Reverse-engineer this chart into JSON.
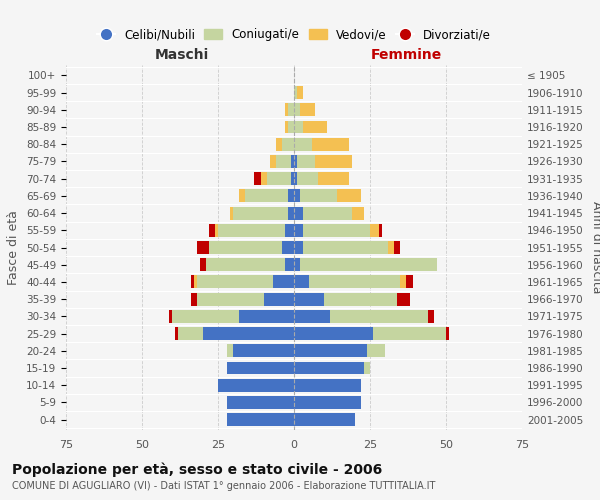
{
  "age_groups": [
    "0-4",
    "5-9",
    "10-14",
    "15-19",
    "20-24",
    "25-29",
    "30-34",
    "35-39",
    "40-44",
    "45-49",
    "50-54",
    "55-59",
    "60-64",
    "65-69",
    "70-74",
    "75-79",
    "80-84",
    "85-89",
    "90-94",
    "95-99",
    "100+"
  ],
  "birth_years": [
    "2001-2005",
    "1996-2000",
    "1991-1995",
    "1986-1990",
    "1981-1985",
    "1976-1980",
    "1971-1975",
    "1966-1970",
    "1961-1965",
    "1956-1960",
    "1951-1955",
    "1946-1950",
    "1941-1945",
    "1936-1940",
    "1931-1935",
    "1926-1930",
    "1921-1925",
    "1916-1920",
    "1911-1915",
    "1906-1910",
    "≤ 1905"
  ],
  "maschi": {
    "celibe": [
      22,
      22,
      25,
      22,
      20,
      30,
      18,
      10,
      7,
      3,
      4,
      3,
      2,
      2,
      1,
      1,
      0,
      0,
      0,
      0,
      0
    ],
    "coniugato": [
      0,
      0,
      0,
      0,
      2,
      8,
      22,
      22,
      25,
      26,
      24,
      22,
      18,
      14,
      8,
      5,
      4,
      2,
      2,
      0,
      0
    ],
    "vedovo": [
      0,
      0,
      0,
      0,
      0,
      0,
      0,
      0,
      1,
      0,
      0,
      1,
      1,
      2,
      2,
      2,
      2,
      1,
      1,
      0,
      0
    ],
    "divorziato": [
      0,
      0,
      0,
      0,
      0,
      1,
      1,
      2,
      1,
      2,
      4,
      2,
      0,
      0,
      2,
      0,
      0,
      0,
      0,
      0,
      0
    ]
  },
  "femmine": {
    "nubile": [
      20,
      22,
      22,
      23,
      24,
      26,
      12,
      10,
      5,
      2,
      3,
      3,
      3,
      2,
      1,
      1,
      0,
      0,
      0,
      0,
      0
    ],
    "coniugata": [
      0,
      0,
      0,
      2,
      6,
      24,
      32,
      24,
      30,
      45,
      28,
      22,
      16,
      12,
      7,
      6,
      6,
      3,
      2,
      1,
      0
    ],
    "vedova": [
      0,
      0,
      0,
      0,
      0,
      0,
      0,
      0,
      2,
      0,
      2,
      3,
      4,
      8,
      10,
      12,
      12,
      8,
      5,
      2,
      0
    ],
    "divorziata": [
      0,
      0,
      0,
      0,
      0,
      1,
      2,
      4,
      2,
      0,
      2,
      1,
      0,
      0,
      0,
      0,
      0,
      0,
      0,
      0,
      0
    ]
  },
  "colors": {
    "celibe": "#4472C4",
    "coniugato": "#C5D5A0",
    "vedovo": "#F4C052",
    "divorziato": "#C00000"
  },
  "xlim": 75,
  "title": "Popolazione per età, sesso e stato civile - 2006",
  "subtitle": "COMUNE DI AGUGLIARO (VI) - Dati ISTAT 1° gennaio 2006 - Elaborazione TUTTITALIA.IT",
  "ylabel_left": "Fasce di età",
  "ylabel_right": "Anni di nascita",
  "xlabel_left": "Maschi",
  "xlabel_right": "Femmine",
  "bg_color": "#f5f5f5"
}
